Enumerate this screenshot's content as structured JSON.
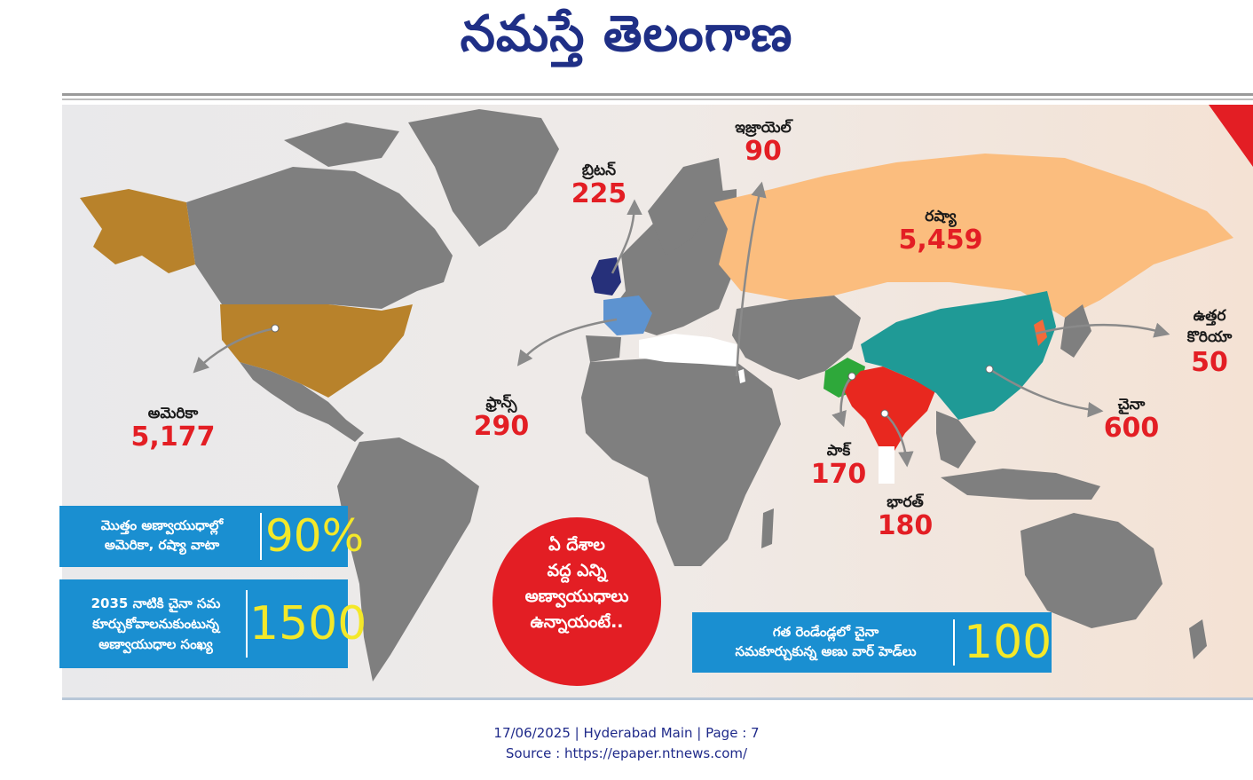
{
  "masthead": {
    "title": "నమస్తే తెలంగాణ"
  },
  "map": {
    "countries": [
      {
        "id": "britain",
        "name": "బ్రిటన్",
        "value": "225"
      },
      {
        "id": "israel",
        "name": "ఇజ్రాయెల్",
        "value": "90"
      },
      {
        "id": "russia",
        "name": "రష్యా",
        "value": "5,459"
      },
      {
        "id": "north-korea",
        "name": "ఉత్తర కొరియా",
        "value": "50"
      },
      {
        "id": "usa",
        "name": "అమెరికా",
        "value": "5,177"
      },
      {
        "id": "france",
        "name": "ఫ్రాన్స్",
        "value": "290"
      },
      {
        "id": "china",
        "name": "చైనా",
        "value": "600"
      },
      {
        "id": "pakistan",
        "name": "పాక్",
        "value": "170"
      },
      {
        "id": "india",
        "name": "భారత్",
        "value": "180"
      }
    ],
    "colors": {
      "usa": "#b8822b",
      "russia": "#fbbd7e",
      "china": "#1f9a96",
      "india": "#e8281f",
      "pakistan": "#2ea83a",
      "britain": "#26307a",
      "france": "#5d93d0",
      "north_korea": "#f36a3a",
      "israel": "#ffffff",
      "land": "#7f7f7f",
      "value_red": "#e31e24",
      "box_blue": "#1a8fd1",
      "number_yellow": "#f4e829"
    }
  },
  "info_boxes": [
    {
      "id": "share",
      "text_lines": [
        "మొత్తం అణ్వాయుధాల్లో",
        "అమెరికా, రష్యా వాటా"
      ],
      "number": "90%"
    },
    {
      "id": "china-2035",
      "text_lines": [
        "2035 నాటికి చైనా సమ",
        "కూర్చుకోవాలనుకుంటున్న",
        "అణ్వాయుధాల సంఖ్య"
      ],
      "number": "1500"
    },
    {
      "id": "china-two-years",
      "text_lines": [
        "గత రెండేండ్లలో చైనా",
        "సమకూర్చుకున్న అణు వార్ హెడ్‌లు"
      ],
      "number": "100"
    }
  ],
  "center_circle": {
    "lines": [
      "ఏ దేశాల",
      "వద్ద ఎన్ని",
      "అణ్వాయుధాలు",
      "ఉన్నాయంటే.."
    ]
  },
  "footer": {
    "line1": "17/06/2025 | Hyderabad Main | Page : 7",
    "line2": "Source : https://epaper.ntnews.com/"
  }
}
